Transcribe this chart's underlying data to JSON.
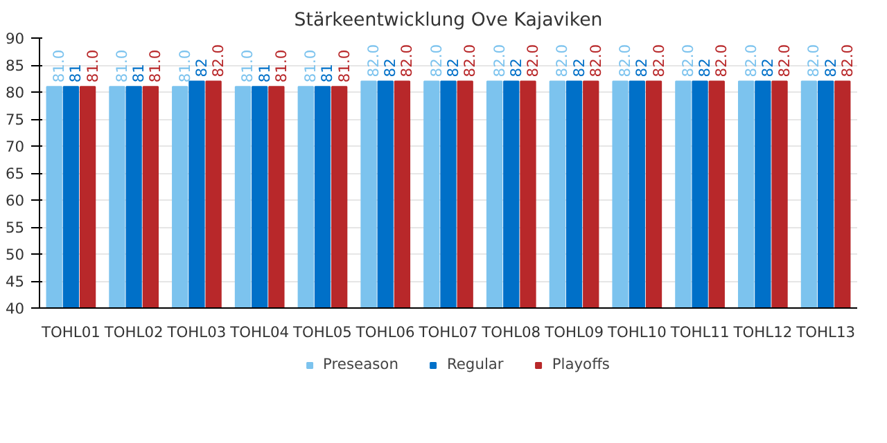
{
  "chart_data": {
    "type": "bar",
    "title": "Stärkeentwicklung Ove Kajaviken",
    "categories": [
      "TOHL01",
      "TOHL02",
      "TOHL03",
      "TOHL04",
      "TOHL05",
      "TOHL06",
      "TOHL07",
      "TOHL08",
      "TOHL09",
      "TOHL10",
      "TOHL11",
      "TOHL12",
      "TOHL13"
    ],
    "series": [
      {
        "name": "Preseason",
        "color": "#7cc3ee",
        "values": [
          81,
          81,
          81,
          81,
          81,
          82,
          82,
          82,
          82,
          82,
          82,
          82,
          82
        ],
        "value_labels": [
          "81.0",
          "81.0",
          "81.0",
          "81.0",
          "81.0",
          "82.0",
          "82.0",
          "82.0",
          "82.0",
          "82.0",
          "82.0",
          "82.0",
          "82.0"
        ]
      },
      {
        "name": "Regular",
        "color": "#0070c8",
        "values": [
          81,
          81,
          82,
          81,
          81,
          82,
          82,
          82,
          82,
          82,
          82,
          82,
          82
        ],
        "value_labels": [
          "81",
          "81",
          "82",
          "81",
          "81",
          "82",
          "82",
          "82",
          "82",
          "82",
          "82",
          "82",
          "82"
        ]
      },
      {
        "name": "Playoffs",
        "color": "#b8282a",
        "values": [
          81,
          81,
          82,
          81,
          81,
          82,
          82,
          82,
          82,
          82,
          82,
          82,
          82
        ],
        "value_labels": [
          "81.0",
          "81.0",
          "82.0",
          "81.0",
          "81.0",
          "82.0",
          "82.0",
          "82.0",
          "82.0",
          "82.0",
          "82.0",
          "82.0",
          "82.0"
        ]
      }
    ],
    "ylim": [
      40,
      90
    ],
    "yticks": [
      40,
      45,
      50,
      55,
      60,
      65,
      70,
      75,
      80,
      85,
      90
    ],
    "grid": "y",
    "legend": "bottom"
  }
}
